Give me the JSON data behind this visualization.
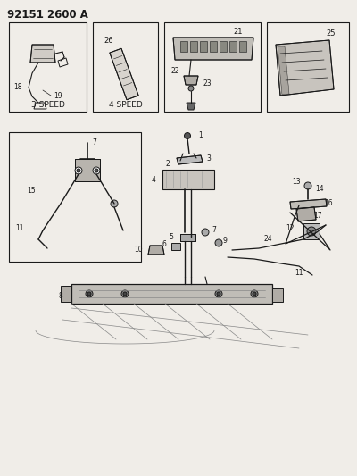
{
  "title": "92151 2600 A",
  "bg_color": "#f0ede8",
  "line_color": "#1a1a1a",
  "title_fontsize": 8.5,
  "box1_label": "3 SPEED",
  "box2_label": "4 SPEED",
  "gray_bg": "#e8e4de",
  "mid_gray": "#c8c4be",
  "dark_gray": "#555555"
}
